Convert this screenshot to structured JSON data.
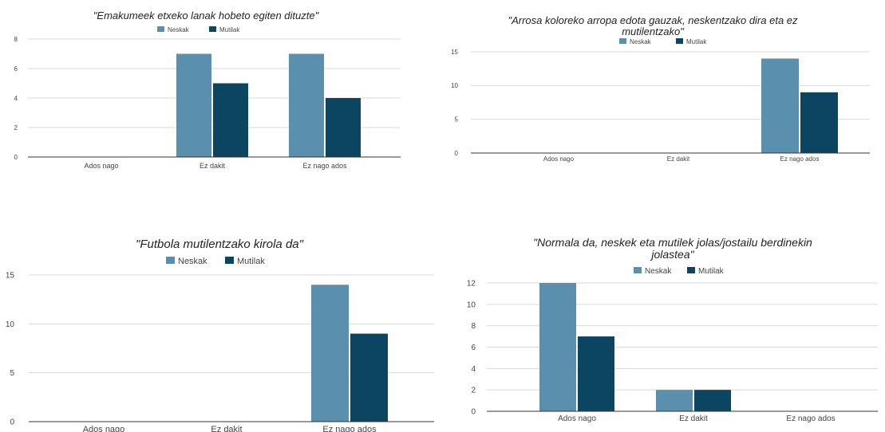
{
  "colors": {
    "neskak": "#5a90ae",
    "mutilak": "#0b4562",
    "grid": "#d9d9d9"
  },
  "chart_data": [
    {
      "type": "bar",
      "title": "\"Emakumeek etxeko lanak hobeto egiten dituzte\"",
      "categories": [
        "Ados nago",
        "Ez dakit",
        "Ez nago ados"
      ],
      "series": [
        {
          "name": "Neskak",
          "values": [
            0,
            7,
            7
          ]
        },
        {
          "name": "Mutilak",
          "values": [
            0,
            5,
            4
          ]
        }
      ],
      "yticks": [
        "0",
        "2",
        "4",
        "6",
        "8"
      ],
      "ylim": [
        0,
        8
      ],
      "grid": true,
      "legend": "top-center"
    },
    {
      "type": "bar",
      "title": "\"Arrosa koloreko arropa edota gauzak, neskentzako dira eta ez mutilentzako\"",
      "categories": [
        "Ados nago",
        "Ez dakit",
        "Ez nago ados"
      ],
      "series": [
        {
          "name": "Neskak",
          "values": [
            0,
            0,
            14
          ]
        },
        {
          "name": "Mutilak",
          "values": [
            0,
            0,
            9
          ]
        }
      ],
      "yticks": [
        "0",
        "5",
        "10",
        "15"
      ],
      "ylim": [
        0,
        15
      ],
      "grid": true,
      "legend": "top-center"
    },
    {
      "type": "bar",
      "title": "\"Futbola mutilentzako kirola da\"",
      "categories": [
        "Ados nago",
        "Ez dakit",
        "Ez nago ados"
      ],
      "series": [
        {
          "name": "Neskak",
          "values": [
            0,
            0,
            14
          ]
        },
        {
          "name": "Mutilak",
          "values": [
            0,
            0,
            9
          ]
        }
      ],
      "yticks": [
        "0",
        "5",
        "10",
        "15"
      ],
      "ylim": [
        0,
        15
      ],
      "grid": true,
      "legend": "top-center"
    },
    {
      "type": "bar",
      "title": "\"Normala da, neskek eta mutilek jolas/jostailu berdinekin jolastea\"",
      "categories": [
        "Ados nago",
        "Ez dakit",
        "Ez nago ados"
      ],
      "series": [
        {
          "name": "Neskak",
          "values": [
            12,
            2,
            0
          ]
        },
        {
          "name": "Mutilak",
          "values": [
            7,
            2,
            0
          ]
        }
      ],
      "yticks": [
        "0",
        "2",
        "4",
        "6",
        "8",
        "10",
        "12"
      ],
      "ylim": [
        0,
        12
      ],
      "grid": true,
      "legend": "top-center"
    }
  ]
}
